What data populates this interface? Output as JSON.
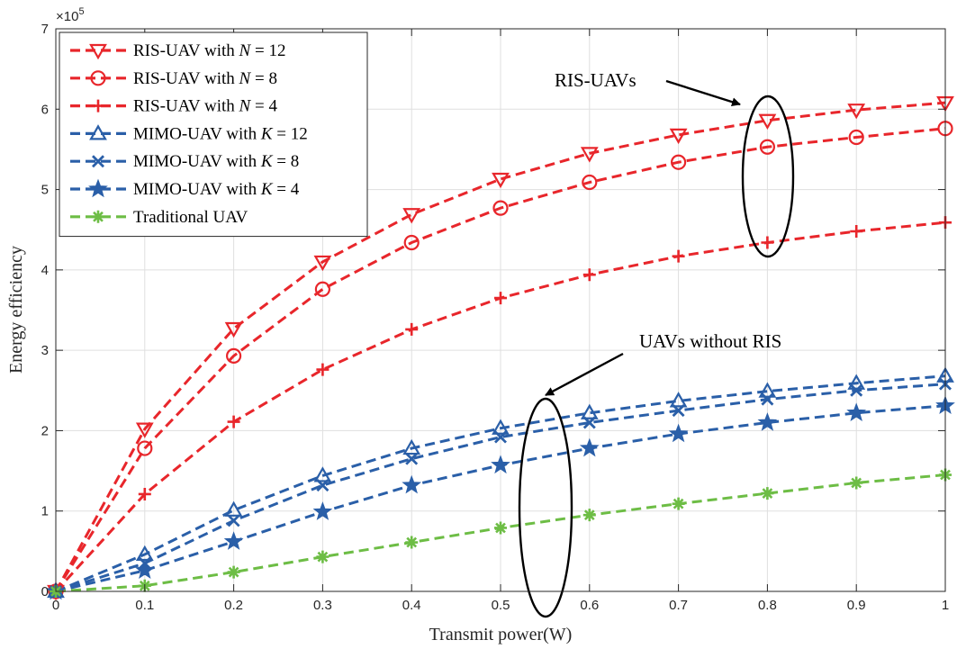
{
  "chart_data": {
    "type": "line",
    "title": "",
    "xlabel": "Transmit power(W)",
    "ylabel": "Energy efficiency",
    "xlim": [
      0,
      1
    ],
    "ylim": [
      0,
      7
    ],
    "y_multiplier": "×10",
    "y_exponent": "5",
    "x_ticks": [
      "0",
      "0.1",
      "0.2",
      "0.3",
      "0.4",
      "0.5",
      "0.6",
      "0.7",
      "0.8",
      "0.9",
      "1"
    ],
    "y_ticks": [
      "0",
      "1",
      "2",
      "3",
      "4",
      "5",
      "6",
      "7"
    ],
    "grid": true,
    "legend_position": "top-left",
    "x": [
      0,
      0.1,
      0.2,
      0.3,
      0.4,
      0.5,
      0.6,
      0.7,
      0.8,
      0.9,
      1.0
    ],
    "series": [
      {
        "name": "RIS-UAV with N = 12",
        "legend": {
          "prefix": "RIS-UAV with ",
          "var": "N",
          "rest": " = 12"
        },
        "color": "#e8262b",
        "marker": "triangle-down",
        "values": [
          0,
          2.02,
          3.27,
          4.1,
          4.69,
          5.13,
          5.45,
          5.68,
          5.86,
          5.99,
          6.08
        ]
      },
      {
        "name": "RIS-UAV with N = 8",
        "legend": {
          "prefix": "RIS-UAV with ",
          "var": "N",
          "rest": " = 8"
        },
        "color": "#e8262b",
        "marker": "circle",
        "values": [
          0,
          1.78,
          2.93,
          3.76,
          4.34,
          4.77,
          5.09,
          5.34,
          5.53,
          5.65,
          5.76
        ]
      },
      {
        "name": "RIS-UAV with N = 4",
        "legend": {
          "prefix": "RIS-UAV with ",
          "var": "N",
          "rest": " = 4"
        },
        "color": "#e8262b",
        "marker": "plus",
        "values": [
          0,
          1.21,
          2.11,
          2.76,
          3.26,
          3.65,
          3.94,
          4.17,
          4.34,
          4.48,
          4.59
        ]
      },
      {
        "name": "MIMO-UAV with K = 12",
        "legend": {
          "prefix": "MIMO-UAV with ",
          "var": "K",
          "rest": " = 12"
        },
        "color": "#2a5fa8",
        "marker": "triangle-up",
        "values": [
          0,
          0.46,
          1.01,
          1.44,
          1.78,
          2.03,
          2.22,
          2.37,
          2.49,
          2.59,
          2.68
        ]
      },
      {
        "name": "MIMO-UAV with K = 8",
        "legend": {
          "prefix": "MIMO-UAV with ",
          "var": "K",
          "rest": " = 8"
        },
        "color": "#2a5fa8",
        "marker": "x",
        "values": [
          0,
          0.35,
          0.88,
          1.32,
          1.65,
          1.92,
          2.1,
          2.25,
          2.39,
          2.5,
          2.58
        ]
      },
      {
        "name": "MIMO-UAV with K = 4",
        "legend": {
          "prefix": "MIMO-UAV with ",
          "var": "K",
          "rest": " = 4"
        },
        "color": "#2a5fa8",
        "marker": "star",
        "values": [
          0,
          0.26,
          0.62,
          0.99,
          1.32,
          1.57,
          1.78,
          1.96,
          2.1,
          2.22,
          2.31
        ]
      },
      {
        "name": "Traditional UAV",
        "legend": {
          "prefix": "Traditional UAV",
          "var": "",
          "rest": ""
        },
        "color": "#6dbd45",
        "marker": "asterisk",
        "values": [
          0,
          0.07,
          0.24,
          0.43,
          0.61,
          0.79,
          0.95,
          1.09,
          1.22,
          1.35,
          1.45
        ]
      }
    ],
    "annotations": [
      {
        "text": "RIS-UAVs",
        "group": "ris"
      },
      {
        "text": "UAVs without RIS",
        "group": "uav"
      }
    ]
  }
}
